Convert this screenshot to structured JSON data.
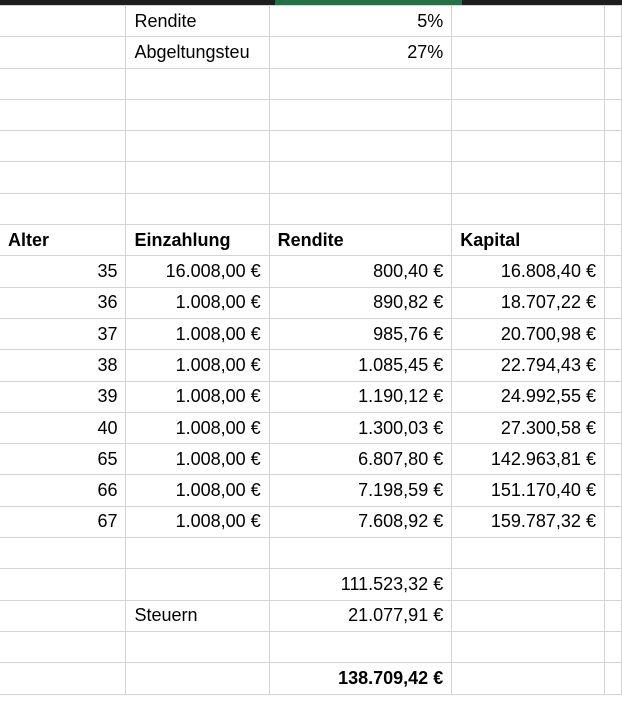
{
  "params": [
    {
      "label": "Rendite",
      "value": "5%"
    },
    {
      "label": "Abgeltungsteu",
      "value": "27%"
    }
  ],
  "headers": [
    "Alter",
    "Einzahlung",
    "Rendite",
    "Kapital"
  ],
  "rows": [
    [
      "35",
      "16.008,00 €",
      "800,40 €",
      "16.808,40 €"
    ],
    [
      "36",
      "1.008,00 €",
      "890,82 €",
      "18.707,22 €"
    ],
    [
      "37",
      "1.008,00 €",
      "985,76 €",
      "20.700,98 €"
    ],
    [
      "38",
      "1.008,00 €",
      "1.085,45 €",
      "22.794,43 €"
    ],
    [
      "39",
      "1.008,00 €",
      "1.190,12 €",
      "24.992,55 €"
    ],
    [
      "40",
      "1.008,00 €",
      "1.300,03 €",
      "27.300,58 €"
    ],
    [
      "65",
      "1.008,00 €",
      "6.807,80 €",
      "142.963,81 €"
    ],
    [
      "66",
      "1.008,00 €",
      "7.198,59 €",
      "151.170,40 €"
    ],
    [
      "67",
      "1.008,00 €",
      "7.608,92 €",
      "159.787,32 €"
    ]
  ],
  "summary": {
    "rendite_sum": "111.523,32 €",
    "steuern_label": "Steuern",
    "steuern_value": "21.077,91 €",
    "net_total": "138.709,42 €"
  },
  "colors": {
    "selection": "#217346",
    "grid": "#d4d4d4"
  }
}
